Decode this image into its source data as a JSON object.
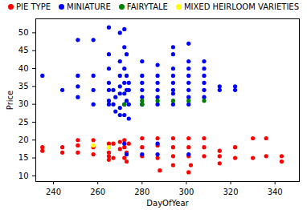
{
  "chart_data": {
    "type": "scatter",
    "x_label": "DayOfYear",
    "y_label": "Price",
    "xlim": [
      232,
      351
    ],
    "ylim": [
      8.4,
      53.9
    ],
    "xticks": [
      240,
      260,
      280,
      300,
      320,
      340
    ],
    "yticks": [
      10,
      15,
      20,
      25,
      30,
      35,
      40,
      45,
      50
    ],
    "legend": "top",
    "series": [
      {
        "name": "PIE TYPE",
        "color": "red",
        "marker": "circle",
        "x": [
          235,
          235,
          244,
          244,
          251,
          251,
          251,
          258,
          258,
          258,
          265,
          265,
          265,
          265,
          265,
          267,
          267,
          270,
          270,
          272,
          272,
          272,
          273,
          273,
          274,
          280,
          280,
          280,
          287,
          287,
          287,
          288,
          294,
          294,
          294,
          294,
          301,
          301,
          301,
          301,
          302,
          308,
          308,
          308,
          315,
          315,
          315,
          322,
          322,
          330,
          330,
          336,
          336,
          343,
          343
        ],
        "values": [
          18,
          17,
          18,
          16.5,
          20,
          18.5,
          16.5,
          20,
          18,
          16,
          19,
          18,
          16.5,
          15.5,
          14.5,
          19,
          15,
          19.5,
          17.5,
          20,
          18,
          15,
          16.5,
          14,
          19,
          20.5,
          18,
          15.5,
          20.5,
          18.5,
          15,
          11.5,
          20.5,
          18,
          15.5,
          13,
          20.5,
          18,
          15.5,
          11,
          13,
          20.5,
          18,
          15.5,
          17,
          15.5,
          13.5,
          18,
          15,
          20.5,
          15,
          20.5,
          15.5,
          15.5,
          14
        ]
      },
      {
        "name": "MINIATURE",
        "color": "blue",
        "marker": "circle",
        "x": [
          235,
          244,
          251,
          251,
          251,
          251,
          258,
          258,
          258,
          258,
          265,
          265,
          265,
          265,
          265,
          265,
          265,
          267,
          267,
          268,
          268,
          270,
          270,
          270,
          270,
          270,
          270,
          270,
          272,
          272,
          272,
          272,
          272,
          272,
          272,
          272,
          273,
          273,
          273,
          273,
          273,
          274,
          274,
          274,
          274,
          280,
          280,
          280,
          280,
          280,
          280,
          280,
          287,
          287,
          287,
          287,
          287,
          287,
          287,
          287,
          294,
          294,
          294,
          294,
          294,
          294,
          294,
          294,
          301,
          301,
          301,
          301,
          301,
          301,
          301,
          301,
          301,
          308,
          308,
          308,
          308,
          308,
          308,
          315,
          315,
          322,
          322
        ],
        "values": [
          38,
          34,
          48,
          38,
          35,
          32,
          48,
          38,
          34,
          30,
          51.5,
          44,
          40,
          36,
          34,
          31,
          30,
          34,
          30,
          32,
          28,
          50,
          42,
          38,
          35,
          33,
          29,
          27,
          51,
          46,
          40,
          36,
          33,
          30,
          27,
          19,
          44,
          38,
          34,
          31,
          16,
          36,
          34,
          30,
          26,
          42,
          38,
          36,
          34,
          32,
          30,
          16,
          41,
          38,
          36,
          34,
          32,
          30,
          19,
          16,
          46,
          44,
          40,
          38,
          36,
          34,
          33,
          30,
          47,
          42,
          40,
          38,
          36,
          34,
          32,
          30,
          16,
          42,
          40,
          38,
          36,
          34,
          32,
          35,
          34,
          35,
          34
        ]
      },
      {
        "name": "FAIRYTALE",
        "color": "green",
        "marker": "circle",
        "x": [
          272,
          280,
          280,
          287,
          294,
          301,
          308
        ],
        "values": [
          30,
          30,
          31,
          31,
          31,
          31,
          31
        ]
      },
      {
        "name": "MIXED HEIRLOOM VARIETIES",
        "color": "yellow",
        "marker": "circle",
        "x": [
          258,
          265
        ],
        "values": [
          18.5,
          18
        ]
      }
    ]
  }
}
